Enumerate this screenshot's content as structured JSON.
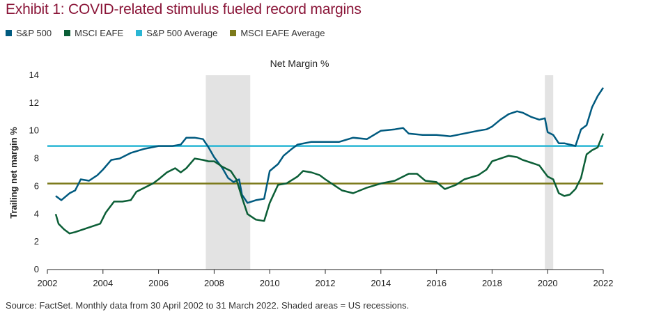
{
  "header": {
    "title": "Exhibit 1: COVID-related stimulus fueled record margins"
  },
  "legend": [
    {
      "label": "S&P 500",
      "color": "#005a7f"
    },
    {
      "label": "MSCI EAFE",
      "color": "#0b5e36"
    },
    {
      "label": "S&P 500 Average",
      "color": "#2ab6d4"
    },
    {
      "label": "MSCI EAFE Average",
      "color": "#7c7a1b"
    }
  ],
  "footer": {
    "source": "Source: FactSet. Monthly data from 30 April 2002 to 31 March 2022. Shaded areas = US recessions."
  },
  "chart_data": {
    "type": "line",
    "title": "Net Margin %",
    "xlabel": "",
    "ylabel": "Trailing net margin %",
    "xlim": [
      2002,
      2022
    ],
    "ylim": [
      0,
      14
    ],
    "x_ticks": [
      "2002",
      "2004",
      "2006",
      "2008",
      "2010",
      "2012",
      "2014",
      "2016",
      "2018",
      "2020",
      "2022"
    ],
    "y_ticks": [
      "0",
      "2",
      "4",
      "6",
      "8",
      "10",
      "12",
      "14"
    ],
    "grid": false,
    "legend_position": "top-left",
    "recessions": [
      [
        2007.7,
        2009.3
      ],
      [
        2019.9,
        2020.2
      ]
    ],
    "series": [
      {
        "name": "S&P 500",
        "color": "#005a7f",
        "x": [
          2002.3,
          2002.5,
          2002.8,
          2003.0,
          2003.2,
          2003.5,
          2003.8,
          2004.0,
          2004.3,
          2004.6,
          2005.0,
          2005.5,
          2006.0,
          2006.5,
          2006.8,
          2007.0,
          2007.3,
          2007.6,
          2007.8,
          2008.0,
          2008.3,
          2008.5,
          2008.7,
          2008.9,
          2009.0,
          2009.2,
          2009.5,
          2009.8,
          2010.0,
          2010.3,
          2010.5,
          2010.8,
          2011.0,
          2011.5,
          2012.0,
          2012.5,
          2013.0,
          2013.5,
          2014.0,
          2014.5,
          2014.8,
          2015.0,
          2015.5,
          2016.0,
          2016.5,
          2017.0,
          2017.5,
          2017.8,
          2018.0,
          2018.3,
          2018.6,
          2018.9,
          2019.1,
          2019.4,
          2019.7,
          2019.9,
          2020.0,
          2020.2,
          2020.4,
          2020.6,
          2020.8,
          2021.0,
          2021.2,
          2021.4,
          2021.6,
          2021.8,
          2022.0
        ],
        "y": [
          5.3,
          5.0,
          5.5,
          5.7,
          6.5,
          6.4,
          6.8,
          7.2,
          7.9,
          8.0,
          8.4,
          8.7,
          8.9,
          8.9,
          9.0,
          9.5,
          9.5,
          9.4,
          8.8,
          8.1,
          7.3,
          6.6,
          6.3,
          6.5,
          5.4,
          4.8,
          5.0,
          5.1,
          7.1,
          7.6,
          8.2,
          8.7,
          9.0,
          9.2,
          9.2,
          9.2,
          9.5,
          9.4,
          10.0,
          10.1,
          10.2,
          9.8,
          9.7,
          9.7,
          9.6,
          9.8,
          10.0,
          10.1,
          10.3,
          10.8,
          11.2,
          11.4,
          11.3,
          11.0,
          10.8,
          10.9,
          9.9,
          9.7,
          9.1,
          9.1,
          9.0,
          8.9,
          10.1,
          10.4,
          11.7,
          12.5,
          13.1
        ]
      },
      {
        "name": "MSCI EAFE",
        "color": "#0b5e36",
        "x": [
          2002.3,
          2002.4,
          2002.6,
          2002.8,
          2003.0,
          2003.3,
          2003.6,
          2003.9,
          2004.1,
          2004.4,
          2004.7,
          2005.0,
          2005.2,
          2005.5,
          2005.8,
          2006.0,
          2006.3,
          2006.6,
          2006.8,
          2007.0,
          2007.3,
          2007.6,
          2007.8,
          2008.0,
          2008.3,
          2008.6,
          2008.8,
          2009.0,
          2009.2,
          2009.5,
          2009.8,
          2010.0,
          2010.3,
          2010.6,
          2011.0,
          2011.2,
          2011.5,
          2011.8,
          2012.0,
          2012.3,
          2012.6,
          2013.0,
          2013.5,
          2014.0,
          2014.5,
          2015.0,
          2015.3,
          2015.6,
          2016.0,
          2016.3,
          2016.7,
          2017.0,
          2017.5,
          2017.8,
          2018.0,
          2018.3,
          2018.6,
          2018.9,
          2019.1,
          2019.4,
          2019.7,
          2020.0,
          2020.2,
          2020.4,
          2020.6,
          2020.8,
          2021.0,
          2021.2,
          2021.4,
          2021.6,
          2021.8,
          2022.0
        ],
        "y": [
          4.0,
          3.3,
          2.9,
          2.6,
          2.7,
          2.9,
          3.1,
          3.3,
          4.1,
          4.9,
          4.9,
          5.0,
          5.6,
          5.9,
          6.2,
          6.5,
          7.0,
          7.3,
          7.0,
          7.3,
          8.0,
          7.9,
          7.8,
          7.8,
          7.4,
          7.1,
          6.5,
          5.2,
          4.0,
          3.6,
          3.5,
          4.8,
          6.1,
          6.2,
          6.7,
          7.1,
          7.0,
          6.8,
          6.5,
          6.1,
          5.7,
          5.5,
          5.9,
          6.2,
          6.4,
          6.9,
          6.9,
          6.4,
          6.3,
          5.8,
          6.1,
          6.5,
          6.8,
          7.2,
          7.8,
          8.0,
          8.2,
          8.1,
          7.9,
          7.7,
          7.5,
          6.7,
          6.5,
          5.5,
          5.3,
          5.4,
          5.8,
          6.6,
          8.3,
          8.6,
          8.8,
          9.8
        ]
      }
    ],
    "reference_lines": [
      {
        "name": "S&P 500 Average",
        "value": 8.9,
        "color": "#2ab6d4"
      },
      {
        "name": "MSCI EAFE Average",
        "value": 6.2,
        "color": "#7c7a1b"
      }
    ]
  }
}
